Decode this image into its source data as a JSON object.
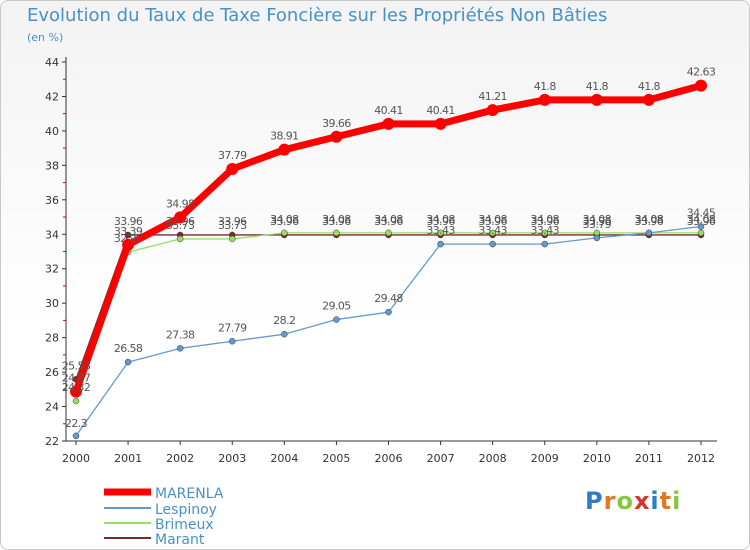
{
  "chart_data": {
    "type": "line",
    "title": "Evolution du Taux de Taxe Foncière sur les Propriétés Non Bâties",
    "ylabel": "(en %)",
    "xlabel": "",
    "ylim": [
      22,
      44
    ],
    "yticks": [
      22,
      24,
      26,
      28,
      30,
      32,
      34,
      36,
      38,
      40,
      42,
      44
    ],
    "categories": [
      "2000",
      "2001",
      "2002",
      "2003",
      "2004",
      "2005",
      "2006",
      "2007",
      "2008",
      "2009",
      "2010",
      "2011",
      "2012"
    ],
    "series": [
      {
        "name": "MARENLA",
        "color": "#ff0000",
        "values": [
          24.87,
          33.39,
          34.98,
          37.79,
          38.91,
          39.66,
          40.41,
          40.41,
          41.21,
          41.8,
          41.8,
          41.8,
          42.63
        ],
        "labels": [
          "24.87",
          "33.39",
          "34.98",
          "37.79",
          "38.91",
          "39.66",
          "40.41",
          "40.41",
          "41.21",
          "41.8",
          "41.8",
          "41.8",
          "42.63"
        ]
      },
      {
        "name": "Lespinoy",
        "color": "#6699cc",
        "values": [
          22.3,
          26.58,
          27.38,
          27.79,
          28.2,
          29.05,
          29.48,
          33.43,
          33.43,
          33.43,
          33.79,
          34.08,
          34.45
        ],
        "labels": [
          "22.3",
          "26.58",
          "27.38",
          "27.79",
          "28.2",
          "29.05",
          "29.48",
          "33.43",
          "33.43",
          "33.43",
          "33.79",
          "34.08",
          "34.45"
        ]
      },
      {
        "name": "Brimeux",
        "color": "#99dd66",
        "values": [
          24.32,
          32.96,
          33.73,
          33.73,
          34.08,
          34.08,
          34.08,
          34.08,
          34.08,
          34.08,
          34.08,
          34.08,
          34.08
        ],
        "labels": [
          "24.32",
          "32.96",
          "33.73",
          "33.73",
          "34.08",
          "34.08",
          "34.08",
          "34.08",
          "34.08",
          "34.08",
          "34.08",
          "34.08",
          "34.08"
        ]
      },
      {
        "name": "Marant",
        "color": "#7a2b2b",
        "values": [
          25.58,
          33.96,
          33.96,
          33.96,
          33.96,
          33.96,
          33.96,
          33.96,
          33.96,
          33.96,
          33.96,
          33.96,
          33.96
        ],
        "labels": [
          "25.58",
          "33.96",
          "33.96",
          "33.96",
          "33.96",
          "33.96",
          "33.96",
          "33.96",
          "33.96",
          "33.96",
          "33.96",
          "33.96",
          "33.96"
        ]
      }
    ]
  },
  "legend": {
    "items": [
      {
        "name": "MARENLA",
        "color": "#ff0000"
      },
      {
        "name": "Lespinoy",
        "color": "#6699cc"
      },
      {
        "name": "Brimeux",
        "color": "#99dd66"
      },
      {
        "name": "Marant",
        "color": "#7a2b2b"
      }
    ]
  },
  "logo": {
    "text": "Proxiti"
  }
}
